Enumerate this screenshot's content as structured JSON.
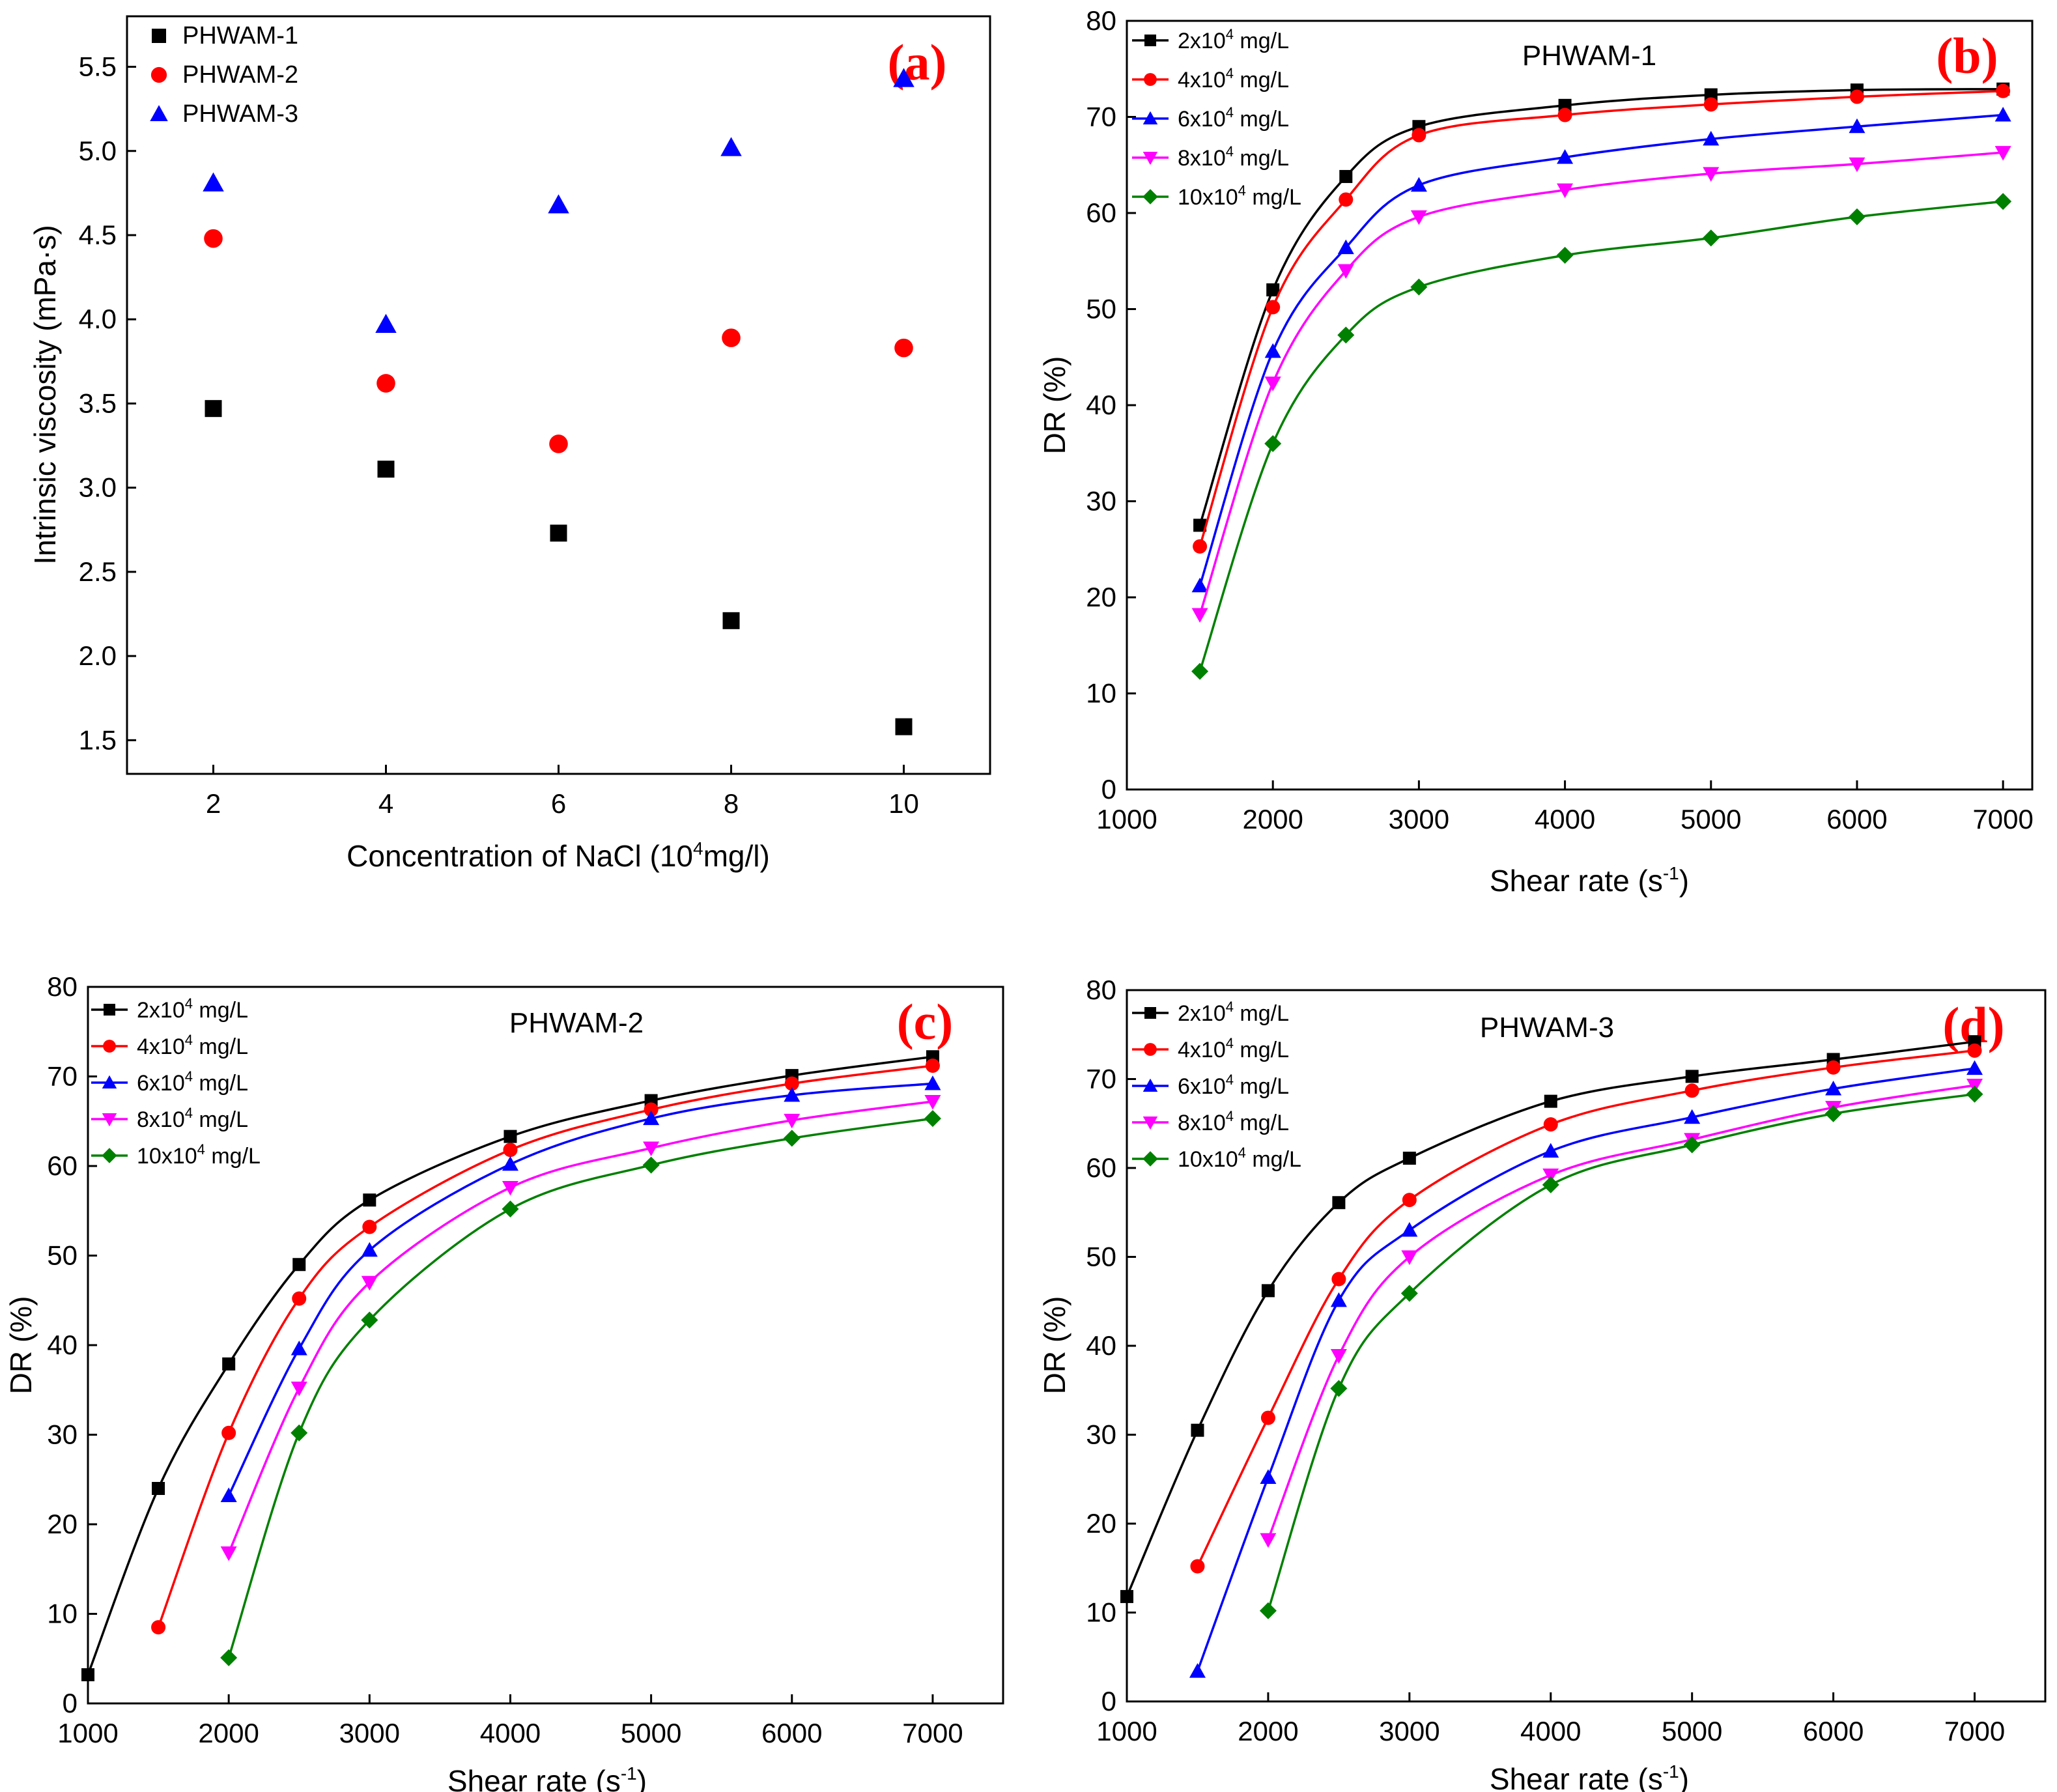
{
  "chart_data": [
    {
      "id": "a",
      "panel_label": "(a)",
      "type": "scatter",
      "title": "",
      "xlabel": "Concentration of NaCl (10",
      "xlabel_sup": "4",
      "xlabel_tail": "mg/l)",
      "ylabel": "Intrinsic viscosity (mPa·s)",
      "xlim": [
        1,
        11
      ],
      "ylim": [
        1.3,
        5.8
      ],
      "xticks": [
        2,
        4,
        6,
        8,
        10
      ],
      "xtick_labels": [
        "2",
        "4",
        "6",
        "8",
        "10"
      ],
      "yticks": [
        1.5,
        2.0,
        2.5,
        3.0,
        3.5,
        4.0,
        4.5,
        5.0,
        5.5
      ],
      "ytick_labels": [
        "1.5",
        "2.0",
        "2.5",
        "3.0",
        "3.5",
        "4.0",
        "4.5",
        "5.0",
        "5.5"
      ],
      "legend_position": "top-left",
      "series": [
        {
          "name": "PHWAM-1",
          "color": "#000000",
          "marker": "square",
          "x": [
            2,
            4,
            6,
            8,
            10
          ],
          "y": [
            3.47,
            3.11,
            2.73,
            2.21,
            1.58
          ]
        },
        {
          "name": "PHWAM-2",
          "color": "#ff0000",
          "marker": "circle",
          "x": [
            2,
            4,
            6,
            8,
            10
          ],
          "y": [
            4.48,
            3.62,
            3.26,
            3.89,
            3.83
          ]
        },
        {
          "name": "PHWAM-3",
          "color": "#0000ff",
          "marker": "triangle-up",
          "x": [
            2,
            4,
            6,
            8,
            10
          ],
          "y": [
            4.81,
            3.97,
            4.68,
            5.02,
            5.43
          ]
        }
      ]
    },
    {
      "id": "b",
      "panel_label": "(b)",
      "type": "line",
      "title": "PHWAM-1",
      "xlabel": "Shear rate (s",
      "xlabel_sup": "-1",
      "xlabel_tail": ")",
      "ylabel": "DR (%)",
      "xlim": [
        1000,
        7200
      ],
      "ylim": [
        0,
        80
      ],
      "xticks": [
        1000,
        2000,
        3000,
        4000,
        5000,
        6000,
        7000
      ],
      "xtick_labels": [
        "1000",
        "2000",
        "3000",
        "4000",
        "5000",
        "6000",
        "7000"
      ],
      "yticks": [
        0,
        10,
        20,
        30,
        40,
        50,
        60,
        70,
        80
      ],
      "ytick_labels": [
        "0",
        "10",
        "20",
        "30",
        "40",
        "50",
        "60",
        "70",
        "80"
      ],
      "legend_position": "top-left",
      "series": [
        {
          "name": "2x10",
          "sup": "4",
          "unit": " mg/L",
          "color": "#000000",
          "marker": "square",
          "x": [
            1500,
            2000,
            2500,
            3000,
            4000,
            5000,
            6000,
            7000
          ],
          "y": [
            27.5,
            52,
            63.8,
            69,
            71.2,
            72.3,
            72.8,
            72.9
          ]
        },
        {
          "name": "4x10",
          "sup": "4",
          "unit": " mg/L",
          "color": "#ff0000",
          "marker": "circle",
          "x": [
            1500,
            2000,
            2500,
            3000,
            4000,
            5000,
            6000,
            7000
          ],
          "y": [
            25.3,
            50.2,
            61.4,
            68.1,
            70.2,
            71.3,
            72.1,
            72.7
          ]
        },
        {
          "name": "6x10",
          "sup": "4",
          "unit": " mg/L",
          "color": "#0000ff",
          "marker": "triangle-up",
          "x": [
            1500,
            2000,
            2500,
            3000,
            4000,
            5000,
            6000,
            7000
          ],
          "y": [
            21.2,
            45.6,
            56.4,
            62.9,
            65.8,
            67.7,
            69.0,
            70.2
          ]
        },
        {
          "name": "8x10",
          "sup": "4",
          "unit": " mg/L",
          "color": "#ff00ff",
          "marker": "triangle-down",
          "x": [
            1500,
            2000,
            2500,
            3000,
            4000,
            5000,
            6000,
            7000
          ],
          "y": [
            18.2,
            42.3,
            54.0,
            59.6,
            62.4,
            64.1,
            65.1,
            66.3
          ]
        },
        {
          "name": "10x10",
          "sup": "4",
          "unit": " mg/L",
          "color": "#008000",
          "marker": "diamond",
          "x": [
            1500,
            2000,
            2500,
            3000,
            4000,
            5000,
            6000,
            7000
          ],
          "y": [
            12.3,
            36.0,
            47.3,
            52.3,
            55.6,
            57.4,
            59.6,
            61.2
          ]
        }
      ]
    },
    {
      "id": "c",
      "panel_label": "(c)",
      "type": "line",
      "title": "PHWAM-2",
      "xlabel": "Shear rate (s",
      "xlabel_sup": "-1",
      "xlabel_tail": ")",
      "ylabel": "DR (%)",
      "xlim": [
        1000,
        7500
      ],
      "ylim": [
        0,
        80
      ],
      "xticks": [
        1000,
        2000,
        3000,
        4000,
        5000,
        6000,
        7000
      ],
      "xtick_labels": [
        "1000",
        "2000",
        "3000",
        "4000",
        "5000",
        "6000",
        "7000"
      ],
      "yticks": [
        0,
        10,
        20,
        30,
        40,
        50,
        60,
        70,
        80
      ],
      "ytick_labels": [
        "0",
        "10",
        "20",
        "30",
        "40",
        "50",
        "60",
        "70",
        "80"
      ],
      "legend_position": "top-left",
      "series": [
        {
          "name": "2x10",
          "sup": "4",
          "unit": " mg/L",
          "color": "#000000",
          "marker": "square",
          "x": [
            1000,
            1500,
            2000,
            2500,
            3000,
            4000,
            5000,
            6000,
            7000
          ],
          "y": [
            3.2,
            24.0,
            37.9,
            49.0,
            56.2,
            63.3,
            67.3,
            70.1,
            72.2
          ]
        },
        {
          "name": "4x10",
          "sup": "4",
          "unit": " mg/L",
          "color": "#ff0000",
          "marker": "circle",
          "x": [
            1500,
            2000,
            2500,
            3000,
            4000,
            5000,
            6000,
            7000
          ],
          "y": [
            8.5,
            30.2,
            45.2,
            53.2,
            61.8,
            66.3,
            69.2,
            71.2
          ]
        },
        {
          "name": "6x10",
          "sup": "4",
          "unit": " mg/L",
          "color": "#0000ff",
          "marker": "triangle-up",
          "x": [
            2000,
            2500,
            3000,
            4000,
            5000,
            6000,
            7000
          ],
          "y": [
            23.2,
            39.6,
            50.6,
            60.2,
            65.3,
            67.9,
            69.2
          ]
        },
        {
          "name": "8x10",
          "sup": "4",
          "unit": " mg/L",
          "color": "#ff00ff",
          "marker": "triangle-down",
          "x": [
            2000,
            2500,
            3000,
            4000,
            5000,
            6000,
            7000
          ],
          "y": [
            16.8,
            35.2,
            47.0,
            57.6,
            62.0,
            65.1,
            67.2
          ]
        },
        {
          "name": "10x10",
          "sup": "4",
          "unit": " mg/L",
          "color": "#008000",
          "marker": "diamond",
          "x": [
            2000,
            2500,
            3000,
            4000,
            5000,
            6000,
            7000
          ],
          "y": [
            5.1,
            30.2,
            42.8,
            55.2,
            60.1,
            63.1,
            65.3
          ]
        }
      ]
    },
    {
      "id": "d",
      "panel_label": "(d)",
      "type": "line",
      "title": "PHWAM-3",
      "xlabel": "Shear rate (s",
      "xlabel_sup": "-1",
      "xlabel_tail": ")",
      "ylabel": "DR (%)",
      "xlim": [
        1000,
        7500
      ],
      "ylim": [
        0,
        80
      ],
      "xticks": [
        1000,
        2000,
        3000,
        4000,
        5000,
        6000,
        7000
      ],
      "xtick_labels": [
        "1000",
        "2000",
        "3000",
        "4000",
        "5000",
        "6000",
        "7000"
      ],
      "yticks": [
        0,
        10,
        20,
        30,
        40,
        50,
        60,
        70,
        80
      ],
      "ytick_labels": [
        "0",
        "10",
        "20",
        "30",
        "40",
        "50",
        "60",
        "70",
        "80"
      ],
      "legend_position": "top-left",
      "series": [
        {
          "name": "2x10",
          "sup": "4",
          "unit": " mg/L",
          "color": "#000000",
          "marker": "square",
          "x": [
            1000,
            1500,
            2000,
            2500,
            3000,
            4000,
            5000,
            6000,
            7000
          ],
          "y": [
            11.8,
            30.5,
            46.2,
            56.1,
            61.1,
            67.5,
            70.3,
            72.2,
            74.2
          ]
        },
        {
          "name": "4x10",
          "sup": "4",
          "unit": " mg/L",
          "color": "#ff0000",
          "marker": "circle",
          "x": [
            1500,
            2000,
            2500,
            3000,
            4000,
            5000,
            6000,
            7000
          ],
          "y": [
            15.2,
            31.9,
            47.5,
            56.4,
            64.9,
            68.7,
            71.3,
            73.2
          ]
        },
        {
          "name": "6x10",
          "sup": "4",
          "unit": " mg/L",
          "color": "#0000ff",
          "marker": "triangle-up",
          "x": [
            1500,
            2000,
            2500,
            3000,
            4000,
            5000,
            6000,
            7000
          ],
          "y": [
            3.4,
            25.2,
            45.1,
            53.0,
            61.9,
            65.7,
            68.9,
            71.2
          ]
        },
        {
          "name": "8x10",
          "sup": "4",
          "unit": " mg/L",
          "color": "#ff00ff",
          "marker": "triangle-down",
          "x": [
            2000,
            2500,
            3000,
            4000,
            5000,
            6000,
            7000
          ],
          "y": [
            18.2,
            38.9,
            50.0,
            59.2,
            63.2,
            66.8,
            69.3
          ]
        },
        {
          "name": "10x10",
          "sup": "4",
          "unit": " mg/L",
          "color": "#008000",
          "marker": "diamond",
          "x": [
            2000,
            2500,
            3000,
            4000,
            5000,
            6000,
            7000
          ],
          "y": [
            10.2,
            35.2,
            45.9,
            58.1,
            62.6,
            66.1,
            68.3
          ]
        }
      ]
    }
  ]
}
